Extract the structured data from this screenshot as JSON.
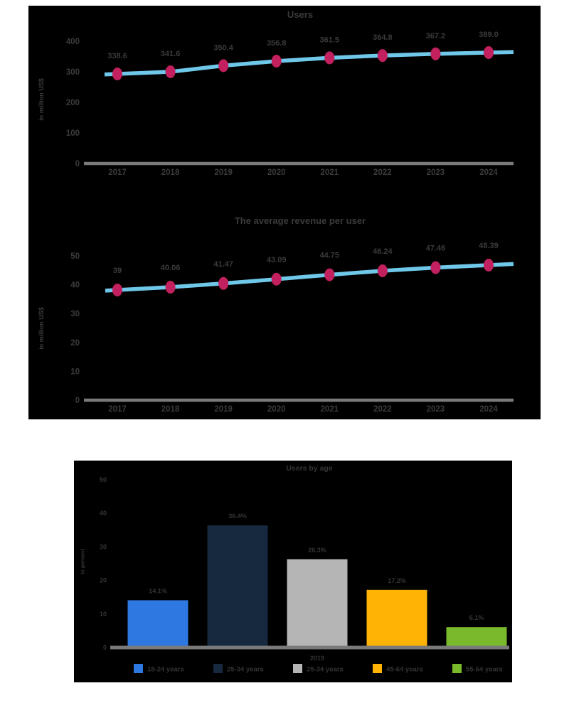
{
  "page": {
    "background": "#ffffff",
    "panel_background": "#000000"
  },
  "chart_data": [
    {
      "type": "line",
      "title": "Users",
      "ylabel": "in million US$",
      "categories": [
        "2017",
        "2018",
        "2019",
        "2020",
        "2021",
        "2022",
        "2023",
        "2024"
      ],
      "values": [
        338.6,
        341.6,
        350.4,
        356.8,
        361.5,
        364.8,
        367.2,
        369.0
      ],
      "point_labels": [
        "338.6",
        "341.6",
        "350.4",
        "356.8",
        "361.5",
        "364.8",
        "367.2",
        "369.0"
      ],
      "yticks": [
        0,
        100,
        200,
        300,
        400
      ],
      "ylim": [
        0,
        400
      ],
      "grid": false,
      "legend_position": "none",
      "line_color": "#6fc8e9",
      "marker_color": "#c2205e",
      "axis_color": "#7a7a7a",
      "text_color": "#3b3b3b"
    },
    {
      "type": "line",
      "title": "The average revenue per user",
      "ylabel": "in million US$",
      "categories": [
        "2017",
        "2018",
        "2019",
        "2020",
        "2021",
        "2022",
        "2023",
        "2024"
      ],
      "values": [
        39,
        40.06,
        41.47,
        43.09,
        44.75,
        46.24,
        47.46,
        48.39
      ],
      "point_labels": [
        "39",
        "40.06",
        "41.47",
        "43.09",
        "44.75",
        "46.24",
        "47.46",
        "48.39"
      ],
      "yticks": [
        0,
        10,
        20,
        30,
        40,
        50
      ],
      "ylim": [
        0,
        50
      ],
      "grid": false,
      "legend_position": "none",
      "line_color": "#6fc8e9",
      "marker_color": "#c2205e",
      "axis_color": "#7a7a7a",
      "text_color": "#3b3b3b"
    },
    {
      "type": "bar",
      "title": "Users by age",
      "ylabel": "in percent",
      "categories": [
        "18-24 years",
        "25-34 years",
        "25-34 years",
        "45-64 years",
        "55-64 years"
      ],
      "values": [
        14.1,
        36.4,
        26.3,
        17.2,
        6.1
      ],
      "bar_labels": [
        "14.1%",
        "36.4%",
        "26.3%",
        "17.2%",
        "6.1%"
      ],
      "bar_colors": [
        "#2e78e2",
        "#16293f",
        "#b5b5b5",
        "#ffb405",
        "#7bb92c"
      ],
      "x_tick_label": "2019",
      "yticks": [
        0,
        10,
        20,
        30,
        40,
        50
      ],
      "ylim": [
        0,
        50
      ],
      "grid": false,
      "legend_position": "bottom",
      "axis_color": "#7a7a7a",
      "text_color": "#343434"
    }
  ]
}
